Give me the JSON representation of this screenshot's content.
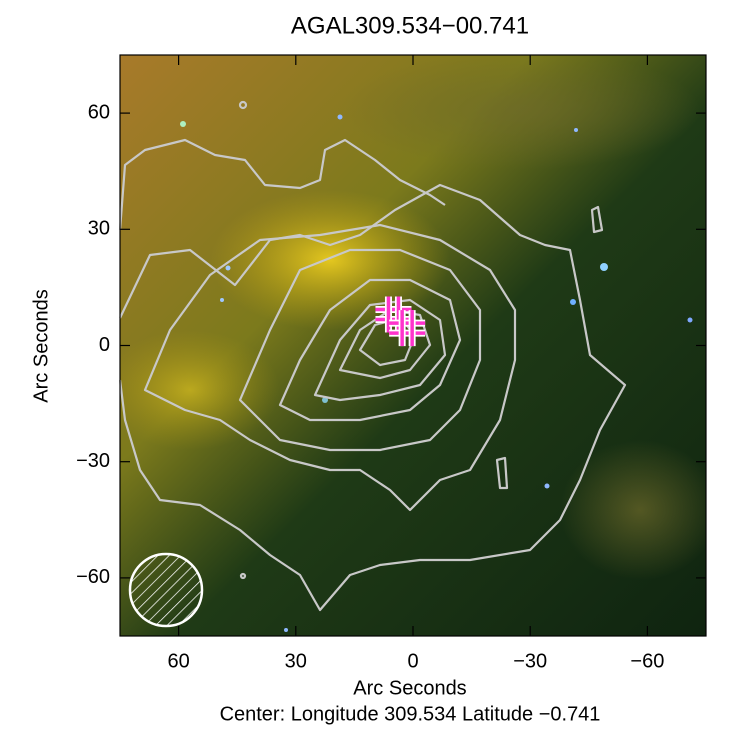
{
  "chart_data": {
    "type": "image",
    "title": "AGAL309.534−00.741",
    "xlabel": "Arc Seconds",
    "ylabel": "Arc Seconds",
    "footer": "Center:  Longitude 309.534 Latitude −0.741",
    "xlim": [
      75,
      -75
    ],
    "ylim": [
      -75,
      75
    ],
    "xticks": [
      60,
      30,
      0,
      {
        "value": -30,
        "label": "−30"
      },
      {
        "value": -60,
        "label": "−60"
      }
    ],
    "yticks": [
      {
        "value": -60,
        "label": "−60"
      },
      {
        "value": -30,
        "label": "−30"
      },
      0,
      30,
      60
    ],
    "markers": {
      "color": "#ff33cc",
      "x": [
        5,
        1.5
      ],
      "y": [
        8,
        4.5
      ]
    }
  }
}
